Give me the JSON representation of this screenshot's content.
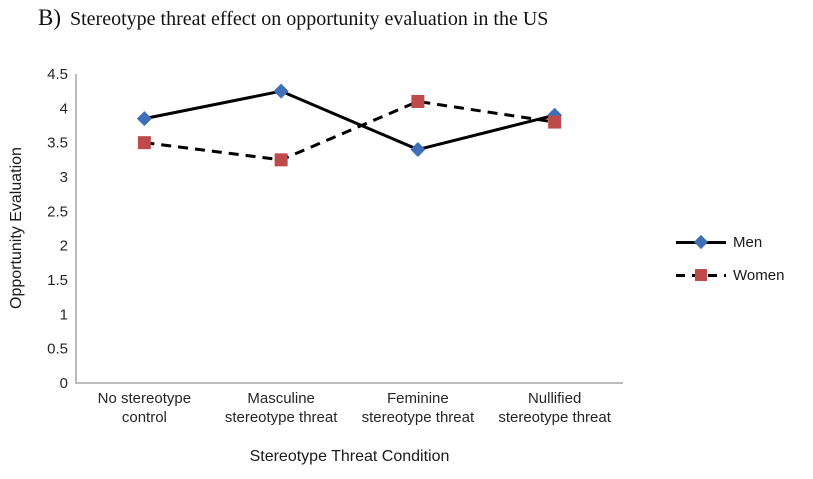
{
  "figure": {
    "label_prefix": "B)",
    "title": "Stereotype threat effect on opportunity evaluation in the US"
  },
  "chart_data": {
    "type": "line",
    "title": "B) Stereotype threat effect on opportunity evaluation in the US",
    "xlabel": "Stereotype Threat Condition",
    "ylabel": "Opportunity Evaluation",
    "ylim": [
      0,
      4.5
    ],
    "yticks": [
      0,
      0.5,
      1,
      1.5,
      2,
      2.5,
      3,
      3.5,
      4,
      4.5
    ],
    "grid": false,
    "legend_position": "right",
    "categories": [
      "No stereotype control",
      "Masculine stereotype threat",
      "Feminine stereotype threat",
      "Nullified stereotype threat"
    ],
    "category_lines": [
      [
        "No stereotype",
        "control"
      ],
      [
        "Masculine",
        "stereotype threat"
      ],
      [
        "Feminine",
        "stereotype threat"
      ],
      [
        "Nullified",
        "stereotype threat"
      ]
    ],
    "series": [
      {
        "name": "Men",
        "values": [
          3.85,
          4.25,
          3.4,
          3.9
        ],
        "marker": "diamond",
        "marker_color": "#3f70b7",
        "line_color": "#000000",
        "line_style": "solid"
      },
      {
        "name": "Women",
        "values": [
          3.5,
          3.25,
          4.1,
          3.8
        ],
        "marker": "square",
        "marker_color": "#be4b4b",
        "line_color": "#000000",
        "line_style": "dashed"
      }
    ],
    "axis_color": "#a6a6a6",
    "text_color": "#262626"
  }
}
